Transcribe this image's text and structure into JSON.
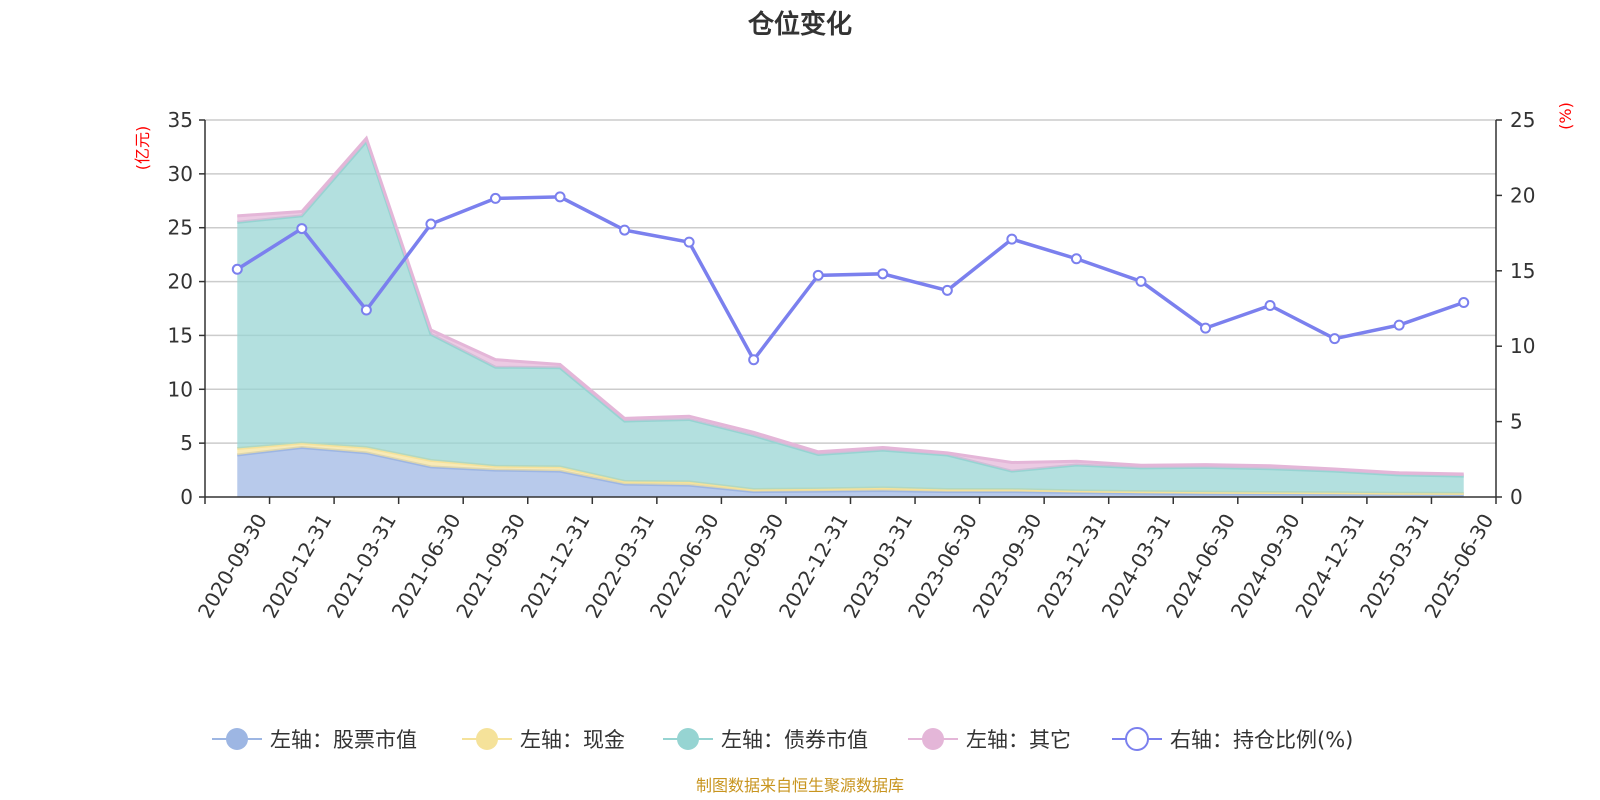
{
  "chart_data": {
    "type": "area",
    "title": "仓位变化",
    "source": "制图数据来自恒生聚源数据库",
    "y_left": {
      "unit": "(亿元)",
      "min": 0,
      "max": 35,
      "ticks": [
        "0",
        "5",
        "10",
        "15",
        "20",
        "25",
        "30",
        "35"
      ]
    },
    "y_right": {
      "unit": "(%)",
      "min": 0,
      "max": 25,
      "ticks": [
        "0",
        "5",
        "10",
        "15",
        "20",
        "25"
      ]
    },
    "grid": true,
    "legend_position": "bottom",
    "categories": [
      "2020-09-30",
      "2020-12-31",
      "2021-03-31",
      "2021-06-30",
      "2021-09-30",
      "2021-12-31",
      "2022-03-31",
      "2022-06-30",
      "2022-09-30",
      "2022-12-31",
      "2023-03-31",
      "2023-06-30",
      "2023-09-30",
      "2023-12-31",
      "2024-03-31",
      "2024-06-30",
      "2024-09-30",
      "2024-12-31",
      "2025-03-31",
      "2025-06-30"
    ],
    "series": [
      {
        "name": "左轴：股票市值",
        "axis": "left",
        "kind": "stacked-area",
        "color": "#9db6e3",
        "values": [
          3.9,
          4.6,
          4.1,
          2.8,
          2.5,
          2.4,
          1.2,
          1.1,
          0.5,
          0.55,
          0.6,
          0.5,
          0.5,
          0.42,
          0.35,
          0.3,
          0.3,
          0.28,
          0.25,
          0.24
        ]
      },
      {
        "name": "左轴：现金",
        "axis": "left",
        "kind": "stacked-area",
        "color": "#f5e29a",
        "values": [
          0.6,
          0.4,
          0.5,
          0.6,
          0.35,
          0.4,
          0.25,
          0.3,
          0.2,
          0.2,
          0.25,
          0.2,
          0.2,
          0.15,
          0.15,
          0.15,
          0.12,
          0.12,
          0.1,
          0.1
        ]
      },
      {
        "name": "左轴：债券市值",
        "axis": "left",
        "kind": "stacked-area",
        "color": "#96d4d2",
        "values": [
          21.0,
          21.1,
          28.4,
          11.7,
          9.2,
          9.2,
          5.6,
          5.8,
          5.0,
          3.2,
          3.5,
          3.2,
          1.7,
          2.4,
          2.2,
          2.3,
          2.2,
          2.0,
          1.7,
          1.6
        ]
      },
      {
        "name": "左轴：其它",
        "axis": "left",
        "kind": "stacked-area",
        "color": "#e4b6d8",
        "values": [
          0.6,
          0.4,
          0.3,
          0.4,
          0.7,
          0.3,
          0.25,
          0.3,
          0.3,
          0.25,
          0.25,
          0.2,
          0.8,
          0.35,
          0.25,
          0.25,
          0.28,
          0.2,
          0.2,
          0.2
        ]
      },
      {
        "name": "右轴：持仓比例(%)",
        "axis": "right",
        "kind": "line",
        "color": "#7b80ee",
        "values": [
          15.1,
          17.8,
          12.4,
          18.1,
          19.8,
          19.9,
          17.7,
          16.9,
          9.1,
          14.7,
          14.8,
          13.7,
          17.1,
          15.8,
          14.3,
          11.2,
          12.7,
          10.5,
          11.4,
          12.9
        ]
      }
    ]
  }
}
